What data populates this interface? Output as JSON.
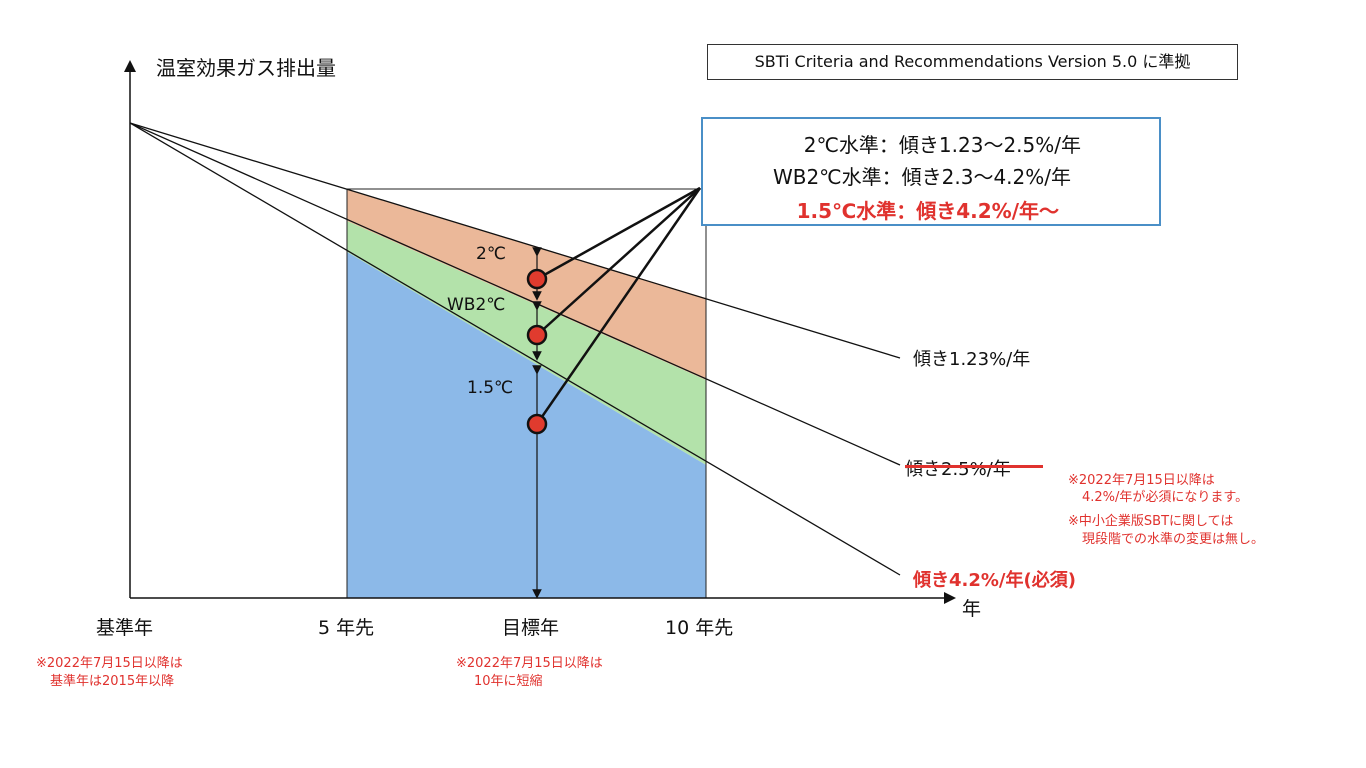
{
  "axis": {
    "y_title": "温室効果ガス排出量",
    "x_title": "年",
    "x_ticks": [
      "基準年",
      "5 年先",
      "目標年",
      "10 年先"
    ]
  },
  "criteria_note": "SBTi Criteria and Recommendations Version 5.0 に準拠",
  "info_box": {
    "line1": "2℃水準：傾き1.23〜2.5%/年",
    "line2": "WB2℃水準：傾き2.3〜4.2%/年",
    "line3": "1.5℃水準：傾き4.2%/年〜"
  },
  "bands": {
    "b2c": "2℃",
    "bwb2c": "WB2℃",
    "b15c": "1.5℃"
  },
  "slopes": {
    "s123": "傾き1.23%/年",
    "s25": "傾き2.5%/年",
    "s42": "傾き4.2%/年(必須)"
  },
  "notes": {
    "right_1": "※2022年7月15日以降は",
    "right_2": "4.2%/年が必須になります。",
    "right_3": "※中小企業版SBTに関しては",
    "right_4": "現段階での水準の変更は無し。",
    "base_1": "※2022年7月15日以降は",
    "base_2": "基準年は2015年以降",
    "target_1": "※2022年7月15日以降は",
    "target_2": "10年に短縮"
  },
  "colors": {
    "band_2c": "#ebb899",
    "band_wb2c": "#b3e2aa",
    "band_15c": "#8cb9e8",
    "accent_red": "#e0322e",
    "box_border": "#4a8fc7",
    "marker_fill": "#e03b2e"
  },
  "markers": [
    "marker-2c",
    "marker-wb2c",
    "marker-15c"
  ]
}
